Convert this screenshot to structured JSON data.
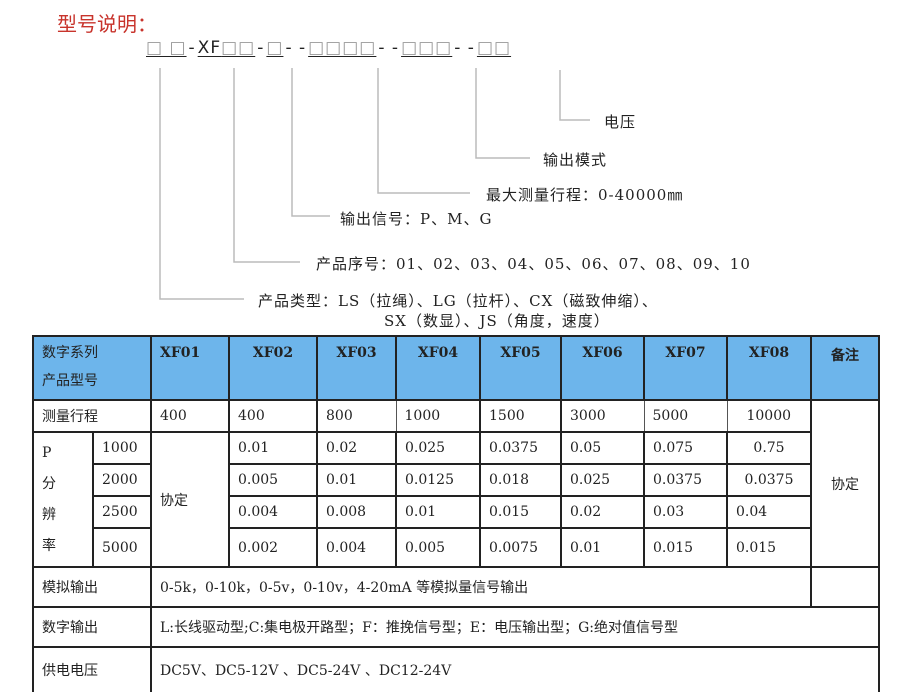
{
  "title": "型号说明：",
  "code": {
    "seg1": "□ □",
    "xf": "XF",
    "seg2": "□□",
    "seg3": "□",
    "seg4": "□□□□",
    "seg5": "□□□",
    "seg6": "□□",
    "dash1": "-",
    "dash2": "-",
    "dash3": "- -",
    "dash4": "- -",
    "dash5": "- -"
  },
  "legend": {
    "voltage": "电压",
    "output_mode": "输出模式",
    "max_range": "最大测量行程：0-40000㎜",
    "output_signal": "输出信号：P、M、G",
    "serial": "产品序号：01、02、03、04、05、06、07、08、09、10",
    "type_line1": "产品类型：LS（拉绳）、LG（拉杆）、CX（磁致伸缩）、",
    "type_line2": "SX（数显）、JS（角度，速度）"
  },
  "table": {
    "header_label_1": "数字系列",
    "header_label_2": "产品型号",
    "models": [
      "XF01",
      "XF02",
      "XF03",
      "XF04",
      "XF05",
      "XF06",
      "XF07",
      "XF08"
    ],
    "remark_header": "备注",
    "range_label": "测量行程",
    "ranges": [
      "400",
      "400",
      "800",
      "1000",
      "1500",
      "3000",
      "5000",
      "10000"
    ],
    "resolution_label": [
      "P",
      "分",
      "辨",
      "率"
    ],
    "xf01_resolution": "协定",
    "remark_value": "协定",
    "resolution_rows": [
      {
        "pulses": "1000",
        "values": [
          "0.01",
          "0.02",
          "0.025",
          "0.0375",
          "0.05",
          "0.075",
          "0.75"
        ]
      },
      {
        "pulses": "2000",
        "values": [
          "0.005",
          "0.01",
          "0.0125",
          "0.018",
          "0.025",
          "0.0375",
          "0.0375"
        ]
      },
      {
        "pulses": "2500",
        "values": [
          "0.004",
          "0.008",
          "0.01",
          "0.015",
          "0.02",
          "0.03",
          "0.04"
        ]
      },
      {
        "pulses": "5000",
        "values": [
          "0.002",
          "0.004",
          "0.005",
          "0.0075",
          "0.01",
          "0.015",
          "0.015"
        ]
      }
    ],
    "analog_label": "模拟输出",
    "analog_value": "0-5k，0-10k，0-5v，0-10v，4-20mA 等模拟量信号输出",
    "digital_label": "数字输出",
    "digital_value": "L:长线驱动型;C:集电极开路型；F：推挽信号型；E：电压输出型；G:绝对值信号型",
    "power_label": "供电电压",
    "power_value": "DC5V、DC5-12V 、DC5-24V 、DC12-24V"
  },
  "colors": {
    "title": "#c8342c",
    "header_bg": "#6db5eb"
  }
}
